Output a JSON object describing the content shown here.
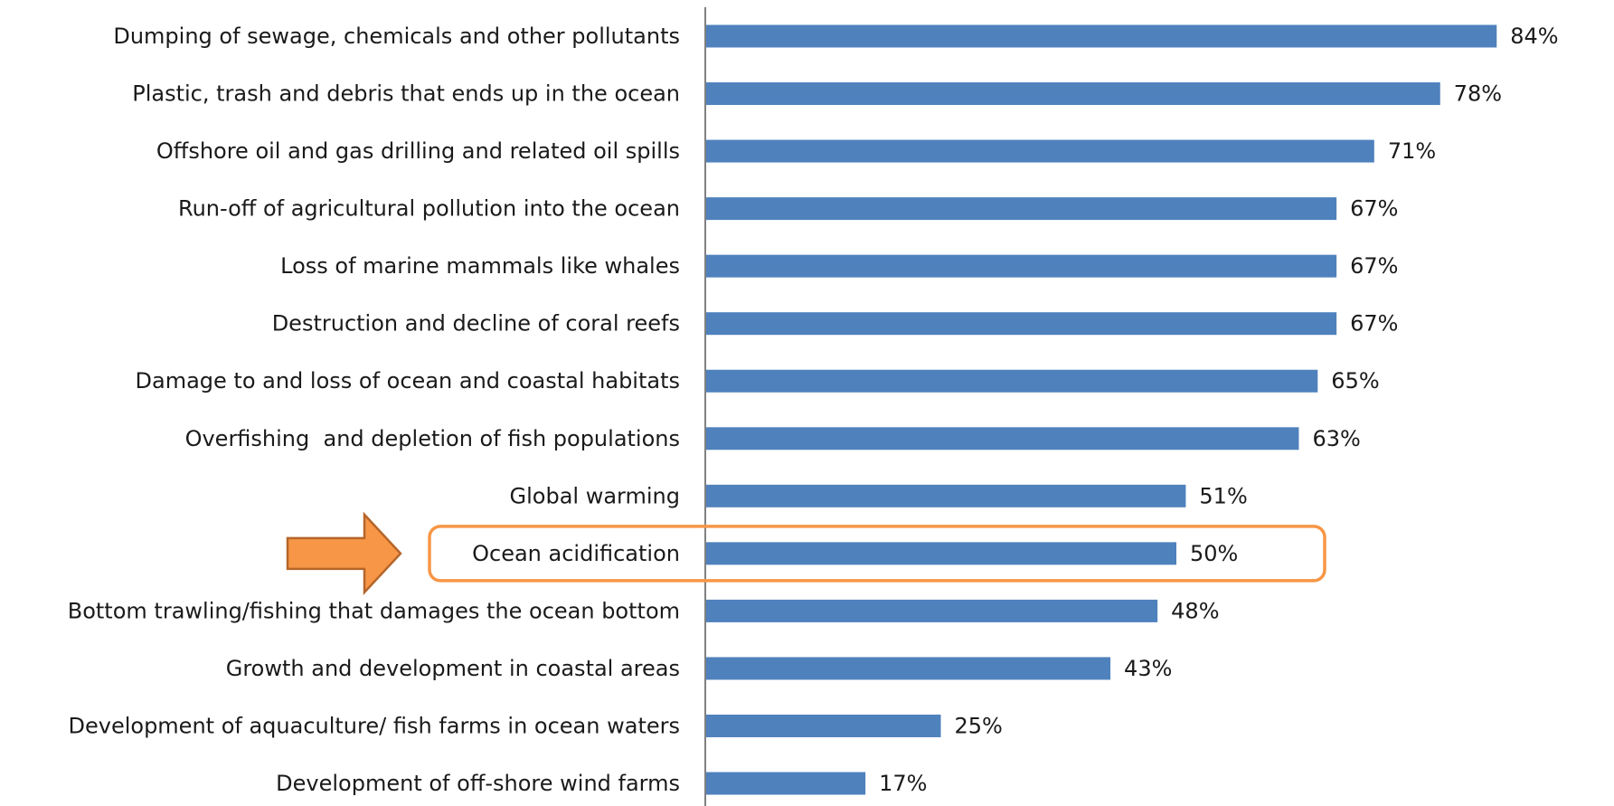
{
  "chart_data": {
    "type": "bar",
    "orientation": "horizontal",
    "categories": [
      "Dumping of sewage, chemicals and other pollutants",
      "Plastic, trash and debris that ends up in the ocean",
      "Offshore oil and gas drilling and related oil spills",
      "Run-off of agricultural pollution into the ocean",
      "Loss of marine mammals like whales",
      "Destruction and decline of coral reefs",
      "Damage to and loss of ocean and coastal habitats",
      "Overfishing  and depletion of fish populations",
      "Global warming",
      "Ocean acidification",
      "Bottom trawling/fishing that damages the ocean bottom",
      "Growth and development in coastal areas",
      "Development of aquaculture/ fish farms in ocean waters",
      "Development of off-shore wind farms"
    ],
    "values": [
      84,
      78,
      71,
      67,
      67,
      67,
      65,
      63,
      51,
      50,
      48,
      43,
      25,
      17
    ],
    "value_labels": [
      "84%",
      "78%",
      "71%",
      "67%",
      "67%",
      "67%",
      "65%",
      "63%",
      "51%",
      "50%",
      "48%",
      "43%",
      "25%",
      "17%"
    ],
    "title": "",
    "xlabel": "",
    "ylabel": "",
    "xlim": [
      0,
      86
    ],
    "grid": false,
    "legend": "none",
    "highlighted_category": "Ocean acidification",
    "colors": {
      "bar": "#4f81bd",
      "highlight": "#f79646",
      "arrow_fill": "#f79646",
      "arrow_stroke": "#b5652a",
      "axis": "#808080"
    }
  }
}
